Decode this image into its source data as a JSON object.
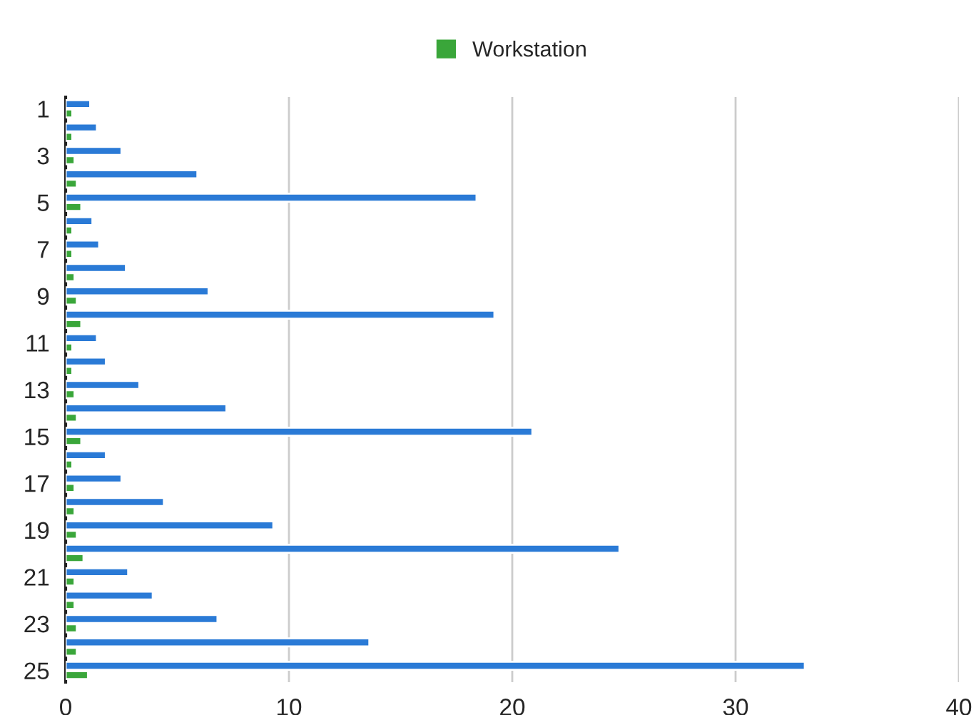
{
  "chart_data": {
    "type": "bar",
    "orientation": "horizontal",
    "categories": [
      "1",
      null,
      "3",
      null,
      "5",
      null,
      "7",
      null,
      "9",
      null,
      "11",
      null,
      "13",
      null,
      "15",
      null,
      "17",
      null,
      "19",
      null,
      "21",
      null,
      "23",
      null,
      "25"
    ],
    "series": [
      {
        "color": "#2a7ad6",
        "values": [
          1.1,
          1.4,
          2.5,
          5.9,
          18.4,
          1.2,
          1.5,
          2.7,
          6.4,
          19.2,
          1.4,
          1.8,
          3.3,
          7.2,
          20.9,
          1.8,
          2.5,
          4.4,
          9.3,
          24.8,
          2.8,
          3.9,
          6.8,
          13.6,
          33.1
        ]
      },
      {
        "name": "Workstation",
        "color": "#3aa63a",
        "values": [
          0.3,
          0.3,
          0.4,
          0.5,
          0.7,
          0.3,
          0.3,
          0.4,
          0.5,
          0.7,
          0.3,
          0.3,
          0.4,
          0.5,
          0.7,
          0.3,
          0.4,
          0.4,
          0.5,
          0.8,
          0.4,
          0.4,
          0.5,
          0.5,
          1.0
        ]
      }
    ],
    "xlim": [
      0,
      40
    ],
    "xticks": [
      0,
      10,
      20,
      30,
      40
    ],
    "grid": "x",
    "legend": "top"
  }
}
